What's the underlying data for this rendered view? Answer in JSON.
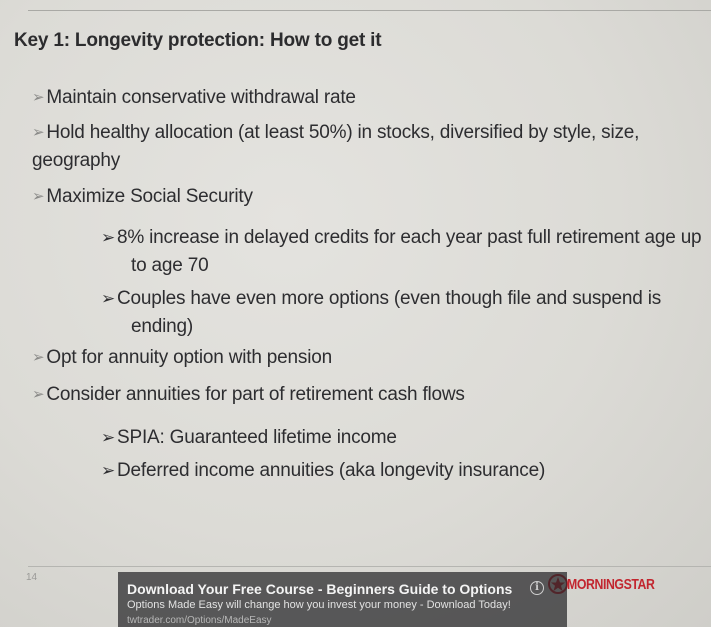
{
  "slide": {
    "title": "Key 1: Longevity protection: How to get it",
    "bullets": [
      {
        "level": 1,
        "marker": "➢",
        "text": "Maintain conservative withdrawal rate"
      },
      {
        "level": 1,
        "marker": "➢",
        "text": "Hold healthy allocation (at least 50%) in stocks, diversified by style, size, geography"
      },
      {
        "level": 1,
        "marker": "➢",
        "text": "Maximize Social Security"
      },
      {
        "level": 2,
        "marker": "➢",
        "text": "8% increase in delayed credits for each year past full retirement age up to age 70"
      },
      {
        "level": 2,
        "marker": "➢",
        "text": "Couples have even more options (even though file and suspend is ending)"
      },
      {
        "level": 1,
        "marker": "➢",
        "text": "Opt for annuity option with pension"
      },
      {
        "level": 1,
        "marker": "➢",
        "text": "Consider annuities for part of retirement cash flows"
      },
      {
        "level": 2,
        "marker": "➢",
        "text": "SPIA: Guaranteed lifetime income"
      },
      {
        "level": 2,
        "marker": "➢",
        "text": "Deferred income annuities (aka longevity insurance)"
      }
    ],
    "page_number": "14",
    "logo_text": "MORNINGSTAR",
    "logo_color": "#c2262f"
  },
  "ad": {
    "title": "Download Your Free Course - Beginners Guide to Options",
    "info_icon": "info-icon",
    "description": "Options Made Easy will change how you invest your money - Download Today!",
    "url": "twtrader.com/Options/MadeEasy"
  }
}
